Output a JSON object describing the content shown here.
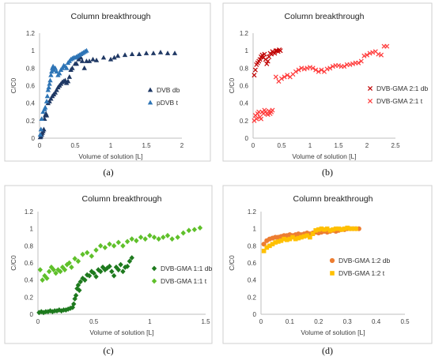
{
  "chart_data": [
    {
      "panel": "(a)",
      "type": "scatter",
      "title": "Column breakthrough",
      "xlabel": "Volume of solution [L]",
      "ylabel": "C/C0",
      "xlim": [
        0,
        2
      ],
      "ylim": [
        0,
        1.2
      ],
      "xticks": [
        "0",
        "0.5",
        "1",
        "1.5",
        "2"
      ],
      "yticks": [
        "0",
        "0.2",
        "0.4",
        "0.6",
        "0.8",
        "1",
        "1.2"
      ],
      "grid": false,
      "legend": "right",
      "series": [
        {
          "name": "DVB db",
          "color": "#1f3864",
          "marker": "triangle",
          "x": [
            0.01,
            0.02,
            0.03,
            0.04,
            0.05,
            0.06,
            0.07,
            0.08,
            0.09,
            0.1,
            0.12,
            0.14,
            0.16,
            0.18,
            0.2,
            0.22,
            0.24,
            0.26,
            0.28,
            0.3,
            0.32,
            0.34,
            0.36,
            0.38,
            0.4,
            0.42,
            0.44,
            0.46,
            0.5,
            0.52,
            0.55,
            0.58,
            0.6,
            0.63,
            0.66,
            0.7,
            0.75,
            0.8,
            0.9,
            1.0,
            1.05,
            1.1,
            1.2,
            1.3,
            1.4,
            1.5,
            1.6,
            1.7,
            1.8,
            1.9
          ],
          "y": [
            0.01,
            0.02,
            0.04,
            0.06,
            0.08,
            0.1,
            0.22,
            0.26,
            0.28,
            0.26,
            0.4,
            0.42,
            0.45,
            0.48,
            0.5,
            0.52,
            0.55,
            0.58,
            0.6,
            0.62,
            0.64,
            0.65,
            0.66,
            0.63,
            0.65,
            0.7,
            0.78,
            0.8,
            0.85,
            0.85,
            0.9,
            0.92,
            0.88,
            0.8,
            0.88,
            0.88,
            0.9,
            0.89,
            0.92,
            0.9,
            0.92,
            0.94,
            0.95,
            0.96,
            0.96,
            0.97,
            0.97,
            0.98,
            0.97,
            0.97
          ]
        },
        {
          "name": "pDVB t",
          "color": "#2e75b6",
          "marker": "triangle",
          "x": [
            0.01,
            0.02,
            0.03,
            0.05,
            0.07,
            0.08,
            0.1,
            0.11,
            0.12,
            0.13,
            0.14,
            0.15,
            0.16,
            0.17,
            0.18,
            0.19,
            0.2,
            0.22,
            0.24,
            0.26,
            0.28,
            0.3,
            0.32,
            0.34,
            0.36,
            0.38,
            0.4,
            0.42,
            0.44,
            0.46,
            0.48,
            0.5,
            0.52,
            0.54,
            0.56,
            0.58,
            0.6,
            0.62,
            0.64,
            0.66
          ],
          "y": [
            0.04,
            0.1,
            0.22,
            0.3,
            0.33,
            0.35,
            0.42,
            0.48,
            0.55,
            0.58,
            0.62,
            0.66,
            0.72,
            0.76,
            0.8,
            0.82,
            0.78,
            0.8,
            0.76,
            0.72,
            0.74,
            0.78,
            0.8,
            0.83,
            0.82,
            0.8,
            0.86,
            0.88,
            0.9,
            0.91,
            0.92,
            0.92,
            0.93,
            0.94,
            0.95,
            0.96,
            0.97,
            0.98,
            0.99,
            1.0
          ]
        }
      ]
    },
    {
      "panel": "(b)",
      "type": "scatter",
      "title": "Column breakthrough",
      "xlabel": "Volume of solution [L]",
      "ylabel": "C/C0",
      "xlim": [
        0,
        2.5
      ],
      "ylim": [
        0,
        1.2
      ],
      "xticks": [
        "0",
        "0.5",
        "1",
        "1.5",
        "2",
        "2.5"
      ],
      "yticks": [
        "0",
        "0.2",
        "0.4",
        "0.6",
        "0.8",
        "1",
        "1.2"
      ],
      "grid": false,
      "legend": "right",
      "series": [
        {
          "name": "DVB-GMA 2:1 db",
          "color": "#c00000",
          "marker": "x",
          "x": [
            0.02,
            0.04,
            0.06,
            0.08,
            0.1,
            0.12,
            0.14,
            0.16,
            0.18,
            0.2,
            0.22,
            0.24,
            0.26,
            0.28,
            0.3,
            0.32,
            0.34,
            0.36,
            0.38,
            0.4,
            0.42,
            0.44,
            0.46,
            0.48
          ],
          "y": [
            0.72,
            0.78,
            0.84,
            0.86,
            0.88,
            0.9,
            0.93,
            0.95,
            0.92,
            0.96,
            0.9,
            0.85,
            0.88,
            0.93,
            0.97,
            0.96,
            0.99,
            0.98,
            0.97,
            1.0,
            1.0,
            0.99,
            1.01,
            1.0
          ]
        },
        {
          "name": "DVB-GMA 2:1 t",
          "color": "#ff3b3b",
          "marker": "x",
          "x": [
            0.02,
            0.04,
            0.06,
            0.08,
            0.1,
            0.12,
            0.14,
            0.16,
            0.18,
            0.2,
            0.22,
            0.24,
            0.26,
            0.28,
            0.3,
            0.32,
            0.34,
            0.4,
            0.45,
            0.5,
            0.55,
            0.6,
            0.65,
            0.7,
            0.75,
            0.8,
            0.85,
            0.9,
            0.95,
            1.0,
            1.05,
            1.1,
            1.15,
            1.2,
            1.25,
            1.3,
            1.35,
            1.4,
            1.45,
            1.5,
            1.55,
            1.6,
            1.65,
            1.7,
            1.75,
            1.8,
            1.85,
            1.9,
            1.95,
            2.0,
            2.05,
            2.1,
            2.15,
            2.2,
            2.25,
            2.3,
            2.35
          ],
          "y": [
            0.2,
            0.26,
            0.22,
            0.28,
            0.3,
            0.24,
            0.22,
            0.3,
            0.28,
            0.32,
            0.3,
            0.28,
            0.27,
            0.31,
            0.28,
            0.3,
            0.32,
            0.7,
            0.65,
            0.68,
            0.7,
            0.72,
            0.7,
            0.73,
            0.76,
            0.78,
            0.8,
            0.79,
            0.8,
            0.81,
            0.8,
            0.78,
            0.76,
            0.78,
            0.76,
            0.79,
            0.8,
            0.82,
            0.83,
            0.83,
            0.82,
            0.82,
            0.84,
            0.84,
            0.85,
            0.86,
            0.86,
            0.88,
            0.94,
            0.95,
            0.97,
            0.98,
            0.99,
            0.96,
            0.95,
            1.05,
            1.05
          ]
        }
      ]
    },
    {
      "panel": "(c)",
      "type": "scatter",
      "title": "Column breakthrough",
      "xlabel": "Volume of solution [L]",
      "ylabel": "C/C0",
      "xlim": [
        0,
        1.5
      ],
      "ylim": [
        0,
        1.2
      ],
      "xticks": [
        "0",
        "0.5",
        "1",
        "1.5"
      ],
      "yticks": [
        "0",
        "0.2",
        "0.4",
        "0.6",
        "0.8",
        "1",
        "1.2"
      ],
      "grid": false,
      "legend": "right",
      "series": [
        {
          "name": "DVB-GMA 1:1 db",
          "color": "#1e7a1e",
          "marker": "diamond",
          "x": [
            0.01,
            0.03,
            0.05,
            0.07,
            0.09,
            0.11,
            0.13,
            0.15,
            0.17,
            0.19,
            0.21,
            0.23,
            0.25,
            0.27,
            0.29,
            0.31,
            0.32,
            0.33,
            0.34,
            0.35,
            0.36,
            0.37,
            0.38,
            0.4,
            0.42,
            0.44,
            0.46,
            0.48,
            0.5,
            0.52,
            0.54,
            0.56,
            0.58,
            0.6,
            0.62,
            0.64,
            0.66,
            0.68,
            0.7,
            0.72,
            0.74,
            0.76,
            0.78,
            0.8,
            0.82,
            0.84
          ],
          "y": [
            0.02,
            0.03,
            0.02,
            0.03,
            0.03,
            0.04,
            0.03,
            0.04,
            0.04,
            0.05,
            0.04,
            0.05,
            0.05,
            0.06,
            0.07,
            0.08,
            0.12,
            0.18,
            0.22,
            0.3,
            0.34,
            0.28,
            0.38,
            0.42,
            0.4,
            0.46,
            0.45,
            0.5,
            0.48,
            0.44,
            0.52,
            0.5,
            0.55,
            0.52,
            0.54,
            0.56,
            0.5,
            0.45,
            0.55,
            0.52,
            0.58,
            0.5,
            0.55,
            0.56,
            0.62,
            0.66
          ]
        },
        {
          "name": "DVB-GMA 1:1 t",
          "color": "#5fc02a",
          "marker": "diamond",
          "x": [
            0.02,
            0.04,
            0.06,
            0.08,
            0.1,
            0.12,
            0.14,
            0.16,
            0.18,
            0.2,
            0.22,
            0.24,
            0.26,
            0.28,
            0.3,
            0.33,
            0.36,
            0.4,
            0.44,
            0.48,
            0.52,
            0.56,
            0.6,
            0.64,
            0.68,
            0.72,
            0.76,
            0.8,
            0.84,
            0.88,
            0.92,
            0.96,
            1.0,
            1.04,
            1.08,
            1.12,
            1.16,
            1.2,
            1.25,
            1.3,
            1.35,
            1.4,
            1.45
          ],
          "y": [
            0.52,
            0.4,
            0.45,
            0.42,
            0.5,
            0.55,
            0.52,
            0.48,
            0.52,
            0.5,
            0.55,
            0.52,
            0.58,
            0.6,
            0.55,
            0.65,
            0.62,
            0.7,
            0.72,
            0.68,
            0.75,
            0.8,
            0.78,
            0.82,
            0.8,
            0.84,
            0.8,
            0.85,
            0.88,
            0.86,
            0.9,
            0.88,
            0.92,
            0.9,
            0.88,
            0.9,
            0.92,
            0.88,
            0.9,
            0.95,
            0.98,
            0.99,
            1.01
          ]
        }
      ]
    },
    {
      "panel": "(d)",
      "type": "scatter",
      "title": "Column breakthrough",
      "xlabel": "Volume of solution [L]",
      "ylabel": "C/C0",
      "xlim": [
        0,
        0.5
      ],
      "ylim": [
        0,
        1.2
      ],
      "xticks": [
        "0",
        "0.1",
        "0.2",
        "0.3",
        "0.4",
        "0.5"
      ],
      "yticks": [
        "0",
        "0.2",
        "0.4",
        "0.6",
        "0.8",
        "1",
        "1.2"
      ],
      "grid": false,
      "legend": "right",
      "series": [
        {
          "name": "DVB-GMA 1:2 db",
          "color": "#ed7d31",
          "marker": "circle",
          "x": [
            0.01,
            0.02,
            0.03,
            0.04,
            0.05,
            0.06,
            0.07,
            0.08,
            0.09,
            0.1,
            0.11,
            0.12,
            0.13,
            0.14,
            0.15,
            0.16,
            0.17,
            0.18,
            0.19,
            0.2,
            0.21,
            0.22,
            0.23,
            0.24,
            0.25,
            0.26,
            0.27,
            0.28,
            0.29,
            0.3,
            0.31,
            0.32,
            0.33,
            0.34
          ],
          "y": [
            0.82,
            0.86,
            0.88,
            0.89,
            0.9,
            0.9,
            0.91,
            0.92,
            0.92,
            0.93,
            0.92,
            0.93,
            0.94,
            0.93,
            0.94,
            0.95,
            0.94,
            0.95,
            0.96,
            0.95,
            0.96,
            0.97,
            0.96,
            0.97,
            0.98,
            0.97,
            0.98,
            0.99,
            0.99,
            1.0,
            1.0,
            1.0,
            1.0,
            1.0
          ]
        },
        {
          "name": "DVB-GMA 1:2 t",
          "color": "#ffc000",
          "marker": "square",
          "x": [
            0.01,
            0.02,
            0.03,
            0.04,
            0.05,
            0.06,
            0.07,
            0.08,
            0.09,
            0.1,
            0.11,
            0.12,
            0.13,
            0.14,
            0.15,
            0.16,
            0.17,
            0.18,
            0.19,
            0.2,
            0.21,
            0.22,
            0.23,
            0.24,
            0.25,
            0.26,
            0.27,
            0.28,
            0.29,
            0.3,
            0.31,
            0.32,
            0.33
          ],
          "y": [
            0.74,
            0.78,
            0.8,
            0.82,
            0.84,
            0.85,
            0.86,
            0.88,
            0.87,
            0.88,
            0.9,
            0.88,
            0.89,
            0.9,
            0.91,
            0.92,
            0.9,
            0.94,
            0.98,
            0.99,
            1.0,
            0.99,
            1.0,
            0.98,
            0.99,
            1.0,
            1.0,
            0.99,
            1.0,
            1.01,
            1.0,
            1.0,
            1.0
          ]
        }
      ]
    }
  ]
}
